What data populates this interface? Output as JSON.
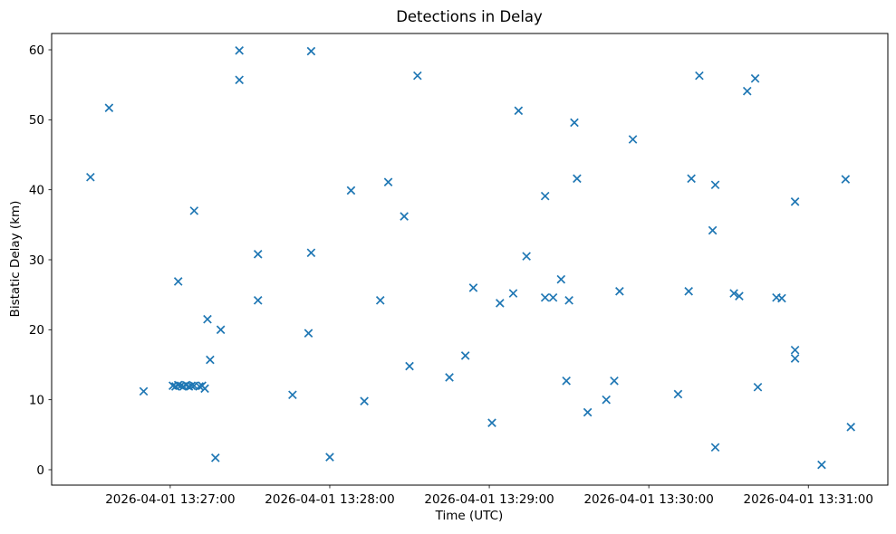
{
  "chart_data": {
    "type": "scatter",
    "title": "Detections in Delay",
    "xlabel": "Time (UTC)",
    "ylabel": "Bistatic Delay (km)",
    "date": "2026-04-01",
    "marker": "x",
    "marker_color": "#1f77b4",
    "grid": false,
    "legend": "none",
    "xlim": [
      "13:26:15.4",
      "13:31:29.9"
    ],
    "ylim": [
      -2.2,
      62.33
    ],
    "x_ticks": [
      {
        "label": "2026-04-01 13:27:00",
        "time": "13:27:00"
      },
      {
        "label": "2026-04-01 13:28:00",
        "time": "13:28:00"
      },
      {
        "label": "2026-04-01 13:29:00",
        "time": "13:29:00"
      },
      {
        "label": "2026-04-01 13:30:00",
        "time": "13:30:00"
      },
      {
        "label": "2026-04-01 13:31:00",
        "time": "13:31:00"
      }
    ],
    "y_ticks": [
      0,
      10,
      20,
      30,
      40,
      50,
      60
    ],
    "points": [
      [
        "13:26:30",
        41.8
      ],
      [
        "13:26:37",
        51.7
      ],
      [
        "13:26:50",
        11.2
      ],
      [
        "13:27:01",
        12.0
      ],
      [
        "13:27:02",
        11.9
      ],
      [
        "13:27:03",
        12.1
      ],
      [
        "13:27:03",
        26.9
      ],
      [
        "13:27:04",
        12.0
      ],
      [
        "13:27:05",
        11.9
      ],
      [
        "13:27:06",
        12.1
      ],
      [
        "13:27:07",
        11.9
      ],
      [
        "13:27:08",
        12.0
      ],
      [
        "13:27:09",
        37.0
      ],
      [
        "13:27:09",
        12.0
      ],
      [
        "13:27:11",
        11.9
      ],
      [
        "13:27:12",
        12.0
      ],
      [
        "13:27:13",
        11.6
      ],
      [
        "13:27:14",
        21.5
      ],
      [
        "13:27:15",
        15.7
      ],
      [
        "13:27:17",
        1.7
      ],
      [
        "13:27:19",
        20.0
      ],
      [
        "13:27:26",
        59.9
      ],
      [
        "13:27:26",
        55.7
      ],
      [
        "13:27:33",
        30.8
      ],
      [
        "13:27:33",
        24.2
      ],
      [
        "13:27:46",
        10.7
      ],
      [
        "13:27:52",
        19.5
      ],
      [
        "13:27:53",
        59.8
      ],
      [
        "13:27:53",
        31.0
      ],
      [
        "13:28:00",
        1.8
      ],
      [
        "13:28:08",
        39.9
      ],
      [
        "13:28:13",
        9.8
      ],
      [
        "13:28:19",
        24.2
      ],
      [
        "13:28:22",
        41.1
      ],
      [
        "13:28:28",
        36.2
      ],
      [
        "13:28:30",
        14.8
      ],
      [
        "13:28:33",
        56.3
      ],
      [
        "13:28:45",
        13.2
      ],
      [
        "13:28:51",
        16.3
      ],
      [
        "13:28:54",
        26.0
      ],
      [
        "13:29:01",
        6.7
      ],
      [
        "13:29:04",
        23.8
      ],
      [
        "13:29:09",
        25.2
      ],
      [
        "13:29:11",
        51.3
      ],
      [
        "13:29:14",
        30.5
      ],
      [
        "13:29:21",
        39.1
      ],
      [
        "13:29:21",
        24.6
      ],
      [
        "13:29:24",
        24.6
      ],
      [
        "13:29:27",
        27.2
      ],
      [
        "13:29:29",
        12.7
      ],
      [
        "13:29:30",
        24.2
      ],
      [
        "13:29:32",
        49.6
      ],
      [
        "13:29:33",
        41.6
      ],
      [
        "13:29:37",
        8.2
      ],
      [
        "13:29:44",
        10.0
      ],
      [
        "13:29:47",
        12.7
      ],
      [
        "13:29:49",
        25.5
      ],
      [
        "13:29:54",
        47.2
      ],
      [
        "13:30:11",
        10.8
      ],
      [
        "13:30:15",
        25.5
      ],
      [
        "13:30:16",
        41.6
      ],
      [
        "13:30:19",
        56.3
      ],
      [
        "13:30:24",
        34.2
      ],
      [
        "13:30:25",
        40.7
      ],
      [
        "13:30:25",
        3.2
      ],
      [
        "13:30:32",
        25.2
      ],
      [
        "13:30:34",
        24.8
      ],
      [
        "13:30:37",
        54.1
      ],
      [
        "13:30:40",
        55.9
      ],
      [
        "13:30:41",
        11.8
      ],
      [
        "13:30:48",
        24.6
      ],
      [
        "13:30:50",
        24.5
      ],
      [
        "13:30:55",
        38.3
      ],
      [
        "13:30:55",
        17.1
      ],
      [
        "13:30:55",
        15.9
      ],
      [
        "13:31:05",
        0.7
      ],
      [
        "13:31:14",
        41.5
      ],
      [
        "13:31:16",
        6.1
      ]
    ]
  }
}
